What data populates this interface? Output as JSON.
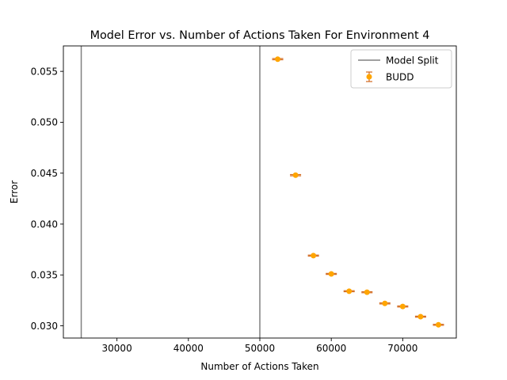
{
  "chart_data": {
    "type": "scatter",
    "title": "Model Error vs. Number of Actions Taken For Environment 4",
    "xlabel": "Number of Actions Taken",
    "ylabel": "Error",
    "xlim": [
      22500,
      77500
    ],
    "ylim": [
      0.0288,
      0.0575
    ],
    "xticks": [
      30000,
      40000,
      50000,
      60000,
      70000
    ],
    "xtick_labels": [
      "30000",
      "40000",
      "50000",
      "60000",
      "70000"
    ],
    "yticks": [
      0.03,
      0.035,
      0.04,
      0.045,
      0.05,
      0.055
    ],
    "ytick_labels": [
      "0.030",
      "0.035",
      "0.040",
      "0.045",
      "0.050",
      "0.055"
    ],
    "grid": false,
    "legend_position": "top-right",
    "vlines": {
      "name": "Model Split",
      "color": "#808080",
      "x": [
        25000,
        50000
      ]
    },
    "series": [
      {
        "name": "BUDD",
        "color": "#ffa500",
        "ecolor": "#d2691e",
        "x": [
          52500,
          55000,
          57500,
          60000,
          62500,
          65000,
          67500,
          70000,
          72500,
          75000
        ],
        "y": [
          0.0562,
          0.0448,
          0.0369,
          0.0351,
          0.0334,
          0.0333,
          0.0322,
          0.0319,
          0.0309,
          0.0301
        ],
        "yerr": [
          6e-05,
          6e-05,
          5e-05,
          5e-05,
          5e-05,
          5e-05,
          5e-05,
          5e-05,
          5e-05,
          5e-05
        ]
      }
    ]
  }
}
